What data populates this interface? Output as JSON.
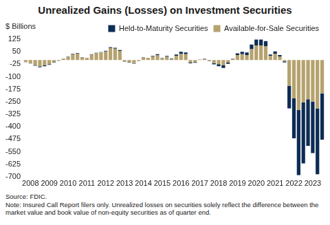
{
  "chart_data": {
    "type": "bar",
    "title": "Unrealized Gains (Losses) on Investment Securities",
    "y_label": "$ Billions",
    "annotations": [
      "Source: FDIC.",
      "Note: Insured Call Report filers only. Unrealized losses on securities solely reflect the difference between the market value and book value of non-equity securities as of quarter end."
    ],
    "categories": [
      null,
      "2008",
      null,
      null,
      null,
      "2009",
      null,
      null,
      null,
      "2010",
      null,
      null,
      null,
      "2011",
      null,
      null,
      null,
      "2012",
      null,
      null,
      null,
      "2013",
      null,
      null,
      null,
      "2014",
      null,
      null,
      null,
      "2015",
      null,
      null,
      null,
      "2016",
      null,
      null,
      null,
      "2017",
      null,
      null,
      null,
      "2018",
      null,
      null,
      null,
      "2019",
      null,
      null,
      null,
      "2020",
      null,
      null,
      null,
      "2021",
      null,
      null,
      null,
      "2022",
      null,
      null,
      null,
      "2023",
      null,
      null
    ],
    "series": [
      {
        "name": "Held-to-Maturity Securities",
        "color": "#0d2c54",
        "values": [
          -2,
          -3,
          -4,
          -5,
          -5,
          -4,
          -3,
          -2,
          1,
          2,
          3,
          3,
          2,
          2,
          3,
          3,
          3,
          4,
          6,
          5,
          5,
          -2,
          -3,
          -4,
          -1,
          2,
          2,
          3,
          5,
          3,
          5,
          3,
          8,
          12,
          10,
          -5,
          -4,
          1,
          2,
          -2,
          -8,
          -12,
          -15,
          -8,
          2,
          10,
          15,
          15,
          28,
          35,
          35,
          32,
          8,
          14,
          8,
          -6,
          -135,
          -240,
          -390,
          -365,
          -280,
          -308,
          -395,
          -278
        ]
      },
      {
        "name": "Available-for-Sale Securities",
        "color": "#b5a26e",
        "values": [
          -10,
          -18,
          -30,
          -38,
          -32,
          -25,
          -12,
          -2,
          8,
          18,
          35,
          38,
          15,
          12,
          32,
          40,
          45,
          52,
          72,
          68,
          55,
          -8,
          -12,
          -18,
          -5,
          15,
          12,
          22,
          30,
          8,
          20,
          5,
          25,
          38,
          35,
          -15,
          -12,
          2,
          5,
          -4,
          -18,
          -25,
          -32,
          -15,
          5,
          30,
          35,
          30,
          65,
          88,
          88,
          82,
          25,
          38,
          22,
          -8,
          -155,
          -230,
          -300,
          -255,
          -235,
          -250,
          -290,
          -200
        ]
      }
    ],
    "ylim": [
      -700,
      125
    ],
    "yticks": [
      125,
      50,
      -25,
      -100,
      -175,
      -250,
      -325,
      -400,
      -475,
      -550,
      -625,
      -700
    ],
    "stacked": true,
    "grid": false,
    "legend": "top-right"
  }
}
